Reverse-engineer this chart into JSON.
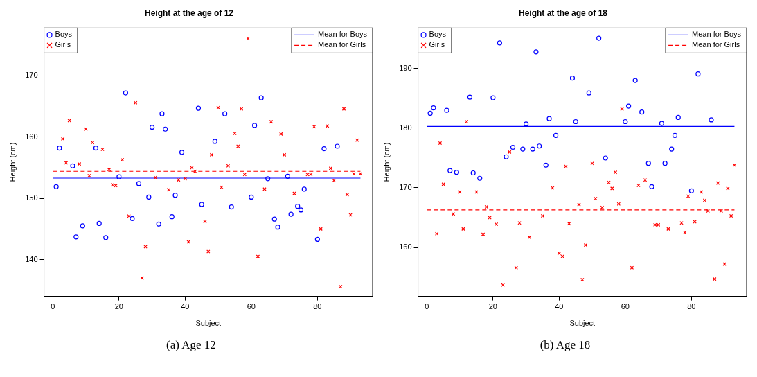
{
  "chart_data": [
    {
      "type": "scatter",
      "title": "Height at the age of 12",
      "xlabel": "Subject",
      "ylabel": "Height (cm)",
      "xlim": [
        -2.68,
        96.68
      ],
      "xticks": [
        0,
        20,
        40,
        60,
        80
      ],
      "ylim": [
        134,
        177.8
      ],
      "yticks": [
        140,
        150,
        160,
        170
      ],
      "legend": "top",
      "annotations": [
        "(a) Age 12"
      ],
      "series": [
        {
          "name": "Boys",
          "color": "#0000ff",
          "marker": "circle",
          "x": [
            1,
            2,
            6,
            7,
            9,
            13,
            14,
            16,
            20,
            22,
            24,
            26,
            29,
            30,
            32,
            33,
            34,
            36,
            37,
            39,
            44,
            45,
            49,
            52,
            54,
            60,
            61,
            63,
            65,
            67,
            68,
            71,
            72,
            74,
            75,
            76,
            80,
            82,
            86
          ],
          "values": [
            151.9,
            158.2,
            155.3,
            143.7,
            145.5,
            158.2,
            145.9,
            143.6,
            153.5,
            167.2,
            146.7,
            152.4,
            150.2,
            161.6,
            145.8,
            163.8,
            161.3,
            147.0,
            150.5,
            157.5,
            164.7,
            149.0,
            159.3,
            163.8,
            148.6,
            150.2,
            161.9,
            166.4,
            153.2,
            146.6,
            145.3,
            153.6,
            147.4,
            148.7,
            148.1,
            151.5,
            143.3,
            158.1,
            158.5
          ]
        },
        {
          "name": "Girls",
          "color": "#ff0000",
          "marker": "cross",
          "x": [
            3,
            4,
            5,
            8,
            10,
            11,
            12,
            15,
            17,
            18,
            19,
            21,
            23,
            25,
            27,
            28,
            31,
            35,
            38,
            40,
            41,
            42,
            43,
            46,
            47,
            48,
            50,
            51,
            53,
            55,
            56,
            57,
            58,
            59,
            62,
            64,
            66,
            69,
            70,
            73,
            77,
            78,
            79,
            81,
            83,
            84,
            85,
            87,
            88,
            89,
            90,
            91,
            92,
            93
          ],
          "values": [
            159.7,
            155.8,
            162.7,
            155.6,
            161.3,
            153.7,
            159.1,
            158.0,
            154.7,
            152.2,
            152.1,
            156.3,
            147.1,
            165.6,
            137.0,
            142.1,
            153.4,
            151.4,
            153.0,
            153.2,
            142.9,
            155.0,
            154.4,
            146.2,
            141.3,
            157.1,
            164.8,
            151.8,
            155.3,
            160.6,
            158.5,
            164.6,
            153.9,
            176.1,
            140.5,
            151.5,
            162.5,
            160.5,
            157.1,
            150.8,
            153.9,
            153.9,
            161.7,
            145.0,
            161.8,
            154.9,
            152.9,
            135.6,
            164.6,
            150.6,
            147.3,
            154.0,
            159.5,
            154.0
          ]
        },
        {
          "name": "Mean for Boys",
          "type": "line",
          "color": "#0000ff",
          "line_style": "solid",
          "marker": "none",
          "x": [
            0,
            93
          ],
          "values": [
            153.3,
            153.3
          ]
        },
        {
          "name": "Mean for Girls",
          "type": "line",
          "color": "#ff0000",
          "line_style": "dashed",
          "marker": "none",
          "x": [
            0,
            93
          ],
          "values": [
            154.4,
            154.4
          ]
        }
      ]
    },
    {
      "type": "scatter",
      "title": "Height at the age of 18",
      "xlabel": "Subject",
      "ylabel": "Height (cm)",
      "xlim": [
        -2.68,
        96.68
      ],
      "xticks": [
        0,
        20,
        40,
        60,
        80
      ],
      "ylim": [
        151.8,
        196.8
      ],
      "yticks": [
        160,
        170,
        180,
        190
      ],
      "legend": "top",
      "annotations": [
        "(b) Age 18"
      ],
      "series": [
        {
          "name": "Boys",
          "color": "#0000ff",
          "marker": "circle",
          "x": [
            1,
            2,
            6,
            7,
            9,
            13,
            14,
            16,
            20,
            22,
            24,
            26,
            29,
            30,
            32,
            33,
            34,
            36,
            37,
            39,
            44,
            45,
            49,
            52,
            54,
            60,
            61,
            63,
            65,
            67,
            68,
            71,
            72,
            74,
            75,
            76,
            80,
            82,
            86
          ],
          "values": [
            182.5,
            183.4,
            183.0,
            172.9,
            172.6,
            185.2,
            172.5,
            171.6,
            185.1,
            194.3,
            175.2,
            176.8,
            176.5,
            180.7,
            176.5,
            192.8,
            177.0,
            173.8,
            181.6,
            178.8,
            188.4,
            181.1,
            185.9,
            195.1,
            175.0,
            181.1,
            183.7,
            188.0,
            182.7,
            174.1,
            170.2,
            180.8,
            174.1,
            176.5,
            178.8,
            181.8,
            169.5,
            189.1,
            181.4
          ]
        },
        {
          "name": "Girls",
          "color": "#ff0000",
          "marker": "cross",
          "x": [
            3,
            4,
            5,
            8,
            10,
            11,
            12,
            15,
            17,
            18,
            19,
            21,
            23,
            25,
            27,
            28,
            31,
            35,
            38,
            40,
            41,
            42,
            43,
            46,
            47,
            48,
            50,
            51,
            53,
            55,
            56,
            57,
            58,
            59,
            62,
            64,
            66,
            69,
            70,
            73,
            77,
            78,
            79,
            81,
            83,
            84,
            85,
            87,
            88,
            89,
            90,
            91,
            92,
            93
          ],
          "values": [
            162.3,
            177.5,
            170.6,
            165.6,
            169.3,
            163.1,
            181.1,
            169.3,
            162.2,
            166.8,
            165.0,
            163.9,
            153.7,
            176.0,
            156.6,
            164.1,
            161.7,
            165.3,
            170.0,
            159.0,
            158.5,
            173.6,
            164.0,
            167.2,
            154.6,
            160.4,
            174.1,
            168.2,
            166.7,
            170.9,
            169.9,
            172.6,
            167.3,
            183.2,
            156.6,
            170.4,
            171.3,
            163.8,
            163.8,
            163.1,
            164.1,
            162.5,
            168.6,
            164.3,
            169.3,
            167.9,
            166.1,
            154.7,
            170.8,
            166.1,
            157.2,
            169.9,
            165.3,
            173.8
          ]
        },
        {
          "name": "Mean for Boys",
          "type": "line",
          "color": "#0000ff",
          "line_style": "solid",
          "marker": "none",
          "x": [
            0,
            93
          ],
          "values": [
            180.3,
            180.3
          ]
        },
        {
          "name": "Mean for Girls",
          "type": "line",
          "color": "#ff0000",
          "line_style": "dashed",
          "marker": "none",
          "x": [
            0,
            93
          ],
          "values": [
            166.3,
            166.3
          ]
        }
      ]
    }
  ]
}
